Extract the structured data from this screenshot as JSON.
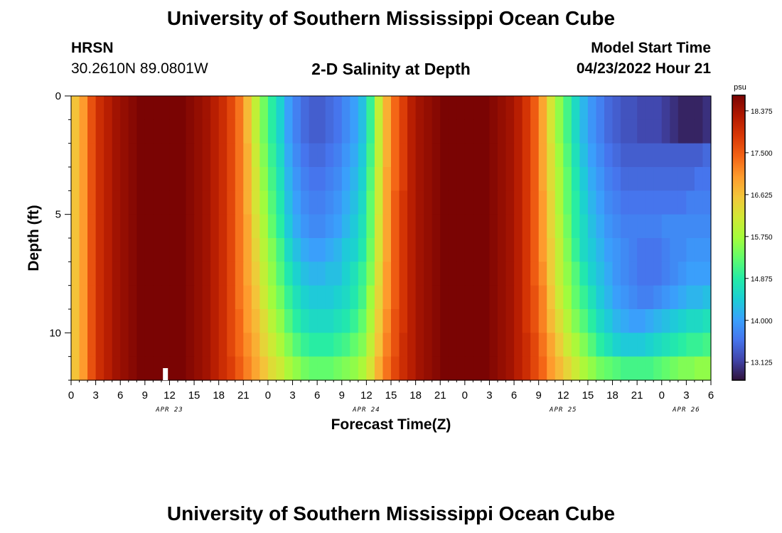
{
  "header": {
    "title": "University of Southern Mississippi Ocean Cube",
    "station": "HRSN",
    "coordinates": "30.2610N  89.0801W",
    "chart_title": "2-D Salinity at Depth",
    "model_start_label": "Model Start Time",
    "model_start_value": "04/23/2022 Hour 21"
  },
  "footer": {
    "title": "University of Southern Mississippi Ocean Cube"
  },
  "colors": {
    "background": "#ffffff",
    "current_time_marker": "#ffffff",
    "colormap": [
      "#30123b",
      "#4145ab",
      "#4675ed",
      "#39a2fc",
      "#1bcfd4",
      "#24eca6",
      "#61fc6c",
      "#a4fc3b",
      "#d1e834",
      "#f3c63a",
      "#fe9b2d",
      "#f36315",
      "#d93806",
      "#b11901",
      "#7a0403"
    ]
  },
  "chart_data": {
    "type": "heatmap",
    "title": "2-D Salinity at Depth",
    "xlabel": "Forecast Time(Z)",
    "ylabel": "Depth (ft)",
    "colorbar_label": "psu",
    "colorbar_ticks": [
      "18.375",
      "17.500",
      "16.625",
      "15.750",
      "14.875",
      "14.000",
      "13.125"
    ],
    "vmin": 12.75,
    "vmax": 18.7,
    "xlim": [
      0,
      78
    ],
    "ylim": [
      0,
      12
    ],
    "y_ticks": [
      "0",
      "5",
      "10"
    ],
    "y_tick_values": [
      0,
      5,
      10
    ],
    "x_tick_labels": [
      "0",
      "3",
      "6",
      "9",
      "12",
      "15",
      "18",
      "21",
      "0",
      "3",
      "6",
      "9",
      "12",
      "15",
      "18",
      "21",
      "0",
      "3",
      "6",
      "9",
      "12",
      "15",
      "18",
      "21",
      "0",
      "3",
      "6"
    ],
    "date_labels": [
      "APR 23",
      "APR 24",
      "APR 25",
      "APR 26"
    ],
    "date_label_hours": [
      12,
      36,
      60,
      75
    ],
    "current_time_hour": 11.5,
    "depth_levels_ft": [
      0,
      1,
      2,
      3,
      4,
      5,
      6,
      7,
      8,
      9,
      10,
      11,
      12
    ],
    "time_step_hours": 1,
    "time_hours": [
      0,
      1,
      2,
      3,
      4,
      5,
      6,
      7,
      8,
      9,
      10,
      11,
      12,
      13,
      14,
      15,
      16,
      17,
      18,
      19,
      20,
      21,
      22,
      23,
      24,
      25,
      26,
      27,
      28,
      29,
      30,
      31,
      32,
      33,
      34,
      35,
      36,
      37,
      38,
      39,
      40,
      41,
      42,
      43,
      44,
      45,
      46,
      47,
      48,
      49,
      50,
      51,
      52,
      53,
      54,
      55,
      56,
      57,
      58,
      59,
      60,
      61,
      62,
      63,
      64,
      65,
      66,
      67,
      68,
      69,
      70,
      71,
      72,
      73,
      74,
      75,
      76,
      77
    ],
    "salinity_psu_by_depth": [
      [
        16.6,
        17.0,
        17.6,
        18.0,
        18.2,
        18.4,
        18.5,
        18.6,
        18.7,
        18.7,
        18.7,
        18.7,
        18.7,
        18.7,
        18.6,
        18.5,
        18.4,
        18.2,
        18.0,
        17.7,
        17.3,
        16.7,
        16.0,
        15.4,
        14.9,
        14.5,
        14.0,
        13.7,
        13.5,
        13.4,
        13.4,
        13.5,
        13.6,
        13.8,
        14.0,
        14.3,
        15.0,
        16.0,
        16.8,
        17.4,
        17.8,
        18.2,
        18.4,
        18.5,
        18.6,
        18.7,
        18.7,
        18.7,
        18.7,
        18.7,
        18.7,
        18.6,
        18.5,
        18.4,
        18.2,
        17.9,
        17.5,
        16.9,
        16.2,
        15.6,
        15.1,
        14.6,
        14.2,
        13.9,
        13.7,
        13.5,
        13.4,
        13.3,
        13.3,
        13.2,
        13.2,
        13.2,
        13.1,
        13.0,
        12.9,
        12.9,
        12.9,
        13.0
      ],
      [
        16.6,
        17.0,
        17.6,
        18.0,
        18.2,
        18.4,
        18.5,
        18.6,
        18.7,
        18.7,
        18.7,
        18.7,
        18.7,
        18.7,
        18.6,
        18.5,
        18.4,
        18.2,
        18.0,
        17.7,
        17.3,
        16.7,
        16.0,
        15.4,
        14.9,
        14.5,
        14.0,
        13.7,
        13.5,
        13.4,
        13.4,
        13.5,
        13.6,
        13.8,
        14.0,
        14.3,
        15.0,
        16.0,
        16.8,
        17.4,
        17.8,
        18.2,
        18.4,
        18.5,
        18.6,
        18.7,
        18.7,
        18.7,
        18.7,
        18.7,
        18.7,
        18.6,
        18.5,
        18.4,
        18.2,
        17.9,
        17.5,
        16.9,
        16.2,
        15.6,
        15.1,
        14.6,
        14.2,
        13.9,
        13.7,
        13.5,
        13.4,
        13.3,
        13.3,
        13.2,
        13.2,
        13.2,
        13.1,
        13.0,
        12.9,
        12.9,
        12.9,
        13.0
      ],
      [
        16.6,
        17.0,
        17.6,
        18.0,
        18.2,
        18.4,
        18.5,
        18.6,
        18.7,
        18.7,
        18.7,
        18.7,
        18.7,
        18.7,
        18.6,
        18.5,
        18.4,
        18.2,
        18.0,
        17.7,
        17.3,
        16.8,
        16.1,
        15.5,
        15.0,
        14.6,
        14.1,
        13.8,
        13.6,
        13.5,
        13.5,
        13.6,
        13.7,
        13.9,
        14.1,
        14.4,
        15.1,
        16.0,
        16.8,
        17.4,
        17.8,
        18.2,
        18.4,
        18.5,
        18.6,
        18.7,
        18.7,
        18.7,
        18.7,
        18.7,
        18.7,
        18.6,
        18.5,
        18.4,
        18.2,
        17.9,
        17.5,
        16.9,
        16.3,
        15.7,
        15.2,
        14.7,
        14.3,
        14.0,
        13.8,
        13.6,
        13.5,
        13.4,
        13.4,
        13.4,
        13.4,
        13.4,
        13.4,
        13.4,
        13.4,
        13.4,
        13.4,
        13.5
      ],
      [
        16.6,
        17.0,
        17.6,
        18.0,
        18.2,
        18.4,
        18.5,
        18.6,
        18.7,
        18.7,
        18.7,
        18.7,
        18.7,
        18.7,
        18.6,
        18.5,
        18.4,
        18.2,
        18.0,
        17.7,
        17.3,
        16.8,
        16.2,
        15.6,
        15.1,
        14.7,
        14.2,
        13.9,
        13.7,
        13.6,
        13.6,
        13.7,
        13.8,
        14.0,
        14.2,
        14.5,
        15.2,
        16.1,
        16.9,
        17.4,
        17.8,
        18.2,
        18.4,
        18.5,
        18.6,
        18.7,
        18.7,
        18.7,
        18.7,
        18.7,
        18.7,
        18.6,
        18.5,
        18.4,
        18.2,
        17.9,
        17.5,
        16.9,
        16.3,
        15.8,
        15.3,
        14.8,
        14.4,
        14.1,
        13.9,
        13.7,
        13.6,
        13.5,
        13.5,
        13.5,
        13.5,
        13.5,
        13.5,
        13.5,
        13.5,
        13.5,
        13.6,
        13.6
      ],
      [
        16.6,
        17.0,
        17.6,
        18.0,
        18.2,
        18.4,
        18.5,
        18.6,
        18.7,
        18.7,
        18.7,
        18.7,
        18.7,
        18.7,
        18.6,
        18.5,
        18.4,
        18.2,
        18.0,
        17.7,
        17.3,
        16.8,
        16.2,
        15.7,
        15.2,
        14.8,
        14.3,
        14.0,
        13.8,
        13.7,
        13.7,
        13.8,
        13.9,
        14.1,
        14.3,
        14.6,
        15.3,
        16.1,
        16.9,
        17.5,
        17.9,
        18.2,
        18.4,
        18.5,
        18.6,
        18.7,
        18.7,
        18.7,
        18.7,
        18.7,
        18.7,
        18.6,
        18.5,
        18.4,
        18.2,
        17.9,
        17.5,
        17.0,
        16.4,
        15.8,
        15.3,
        14.9,
        14.5,
        14.2,
        14.0,
        13.8,
        13.7,
        13.6,
        13.6,
        13.6,
        13.6,
        13.6,
        13.6,
        13.6,
        13.6,
        13.7,
        13.7,
        13.7
      ],
      [
        16.6,
        17.0,
        17.6,
        18.0,
        18.2,
        18.4,
        18.5,
        18.6,
        18.7,
        18.7,
        18.7,
        18.7,
        18.7,
        18.7,
        18.6,
        18.5,
        18.4,
        18.2,
        18.0,
        17.7,
        17.3,
        16.9,
        16.3,
        15.8,
        15.3,
        14.9,
        14.4,
        14.1,
        13.9,
        13.8,
        13.8,
        13.9,
        14.0,
        14.2,
        14.4,
        14.7,
        15.3,
        16.2,
        16.9,
        17.5,
        17.9,
        18.2,
        18.4,
        18.5,
        18.6,
        18.7,
        18.7,
        18.7,
        18.7,
        18.7,
        18.7,
        18.6,
        18.5,
        18.4,
        18.2,
        17.9,
        17.5,
        17.0,
        16.4,
        15.9,
        15.4,
        14.9,
        14.6,
        14.3,
        14.1,
        13.9,
        13.8,
        13.7,
        13.7,
        13.7,
        13.7,
        13.7,
        13.8,
        13.8,
        13.8,
        13.8,
        13.8,
        13.8
      ],
      [
        16.6,
        17.0,
        17.6,
        18.0,
        18.2,
        18.4,
        18.5,
        18.6,
        18.7,
        18.7,
        18.7,
        18.7,
        18.7,
        18.7,
        18.6,
        18.5,
        18.4,
        18.2,
        18.0,
        17.7,
        17.3,
        16.9,
        16.4,
        15.9,
        15.5,
        15.1,
        14.6,
        14.3,
        14.1,
        14.0,
        14.0,
        14.1,
        14.2,
        14.4,
        14.5,
        14.8,
        15.4,
        16.2,
        16.9,
        17.5,
        17.9,
        18.2,
        18.4,
        18.5,
        18.6,
        18.7,
        18.7,
        18.7,
        18.7,
        18.7,
        18.7,
        18.6,
        18.5,
        18.4,
        18.2,
        17.9,
        17.5,
        17.0,
        16.5,
        16.0,
        15.5,
        15.0,
        14.6,
        14.4,
        14.2,
        14.0,
        13.9,
        13.8,
        13.7,
        13.6,
        13.6,
        13.6,
        13.7,
        13.8,
        13.8,
        13.9,
        13.9,
        13.9
      ],
      [
        16.6,
        17.0,
        17.6,
        18.0,
        18.2,
        18.4,
        18.5,
        18.6,
        18.7,
        18.7,
        18.7,
        18.7,
        18.7,
        18.7,
        18.6,
        18.5,
        18.4,
        18.2,
        18.0,
        17.7,
        17.3,
        16.9,
        16.5,
        16.0,
        15.6,
        15.2,
        14.8,
        14.5,
        14.3,
        14.2,
        14.2,
        14.3,
        14.3,
        14.5,
        14.7,
        15.0,
        15.5,
        16.3,
        17.0,
        17.5,
        17.9,
        18.2,
        18.4,
        18.5,
        18.6,
        18.7,
        18.7,
        18.7,
        18.7,
        18.7,
        18.7,
        18.6,
        18.5,
        18.4,
        18.2,
        17.9,
        17.5,
        17.1,
        16.5,
        16.0,
        15.6,
        15.2,
        14.8,
        14.5,
        14.3,
        14.1,
        13.9,
        13.8,
        13.7,
        13.6,
        13.6,
        13.6,
        13.7,
        13.8,
        13.9,
        14.0,
        14.0,
        14.0
      ],
      [
        16.6,
        17.0,
        17.6,
        18.0,
        18.2,
        18.4,
        18.5,
        18.6,
        18.7,
        18.7,
        18.7,
        18.7,
        18.7,
        18.7,
        18.6,
        18.5,
        18.4,
        18.2,
        18.0,
        17.7,
        17.3,
        17.0,
        16.6,
        16.1,
        15.7,
        15.4,
        15.0,
        14.7,
        14.5,
        14.4,
        14.4,
        14.4,
        14.5,
        14.6,
        14.8,
        15.1,
        15.7,
        16.4,
        17.0,
        17.5,
        17.9,
        18.2,
        18.4,
        18.5,
        18.6,
        18.7,
        18.7,
        18.7,
        18.7,
        18.7,
        18.7,
        18.6,
        18.5,
        18.4,
        18.2,
        17.9,
        17.6,
        17.2,
        16.6,
        16.1,
        15.7,
        15.3,
        15.0,
        14.7,
        14.4,
        14.2,
        14.0,
        13.9,
        13.8,
        13.7,
        13.7,
        13.8,
        13.9,
        14.0,
        14.1,
        14.2,
        14.2,
        14.3
      ],
      [
        16.6,
        17.0,
        17.6,
        18.0,
        18.2,
        18.4,
        18.5,
        18.6,
        18.7,
        18.7,
        18.7,
        18.7,
        18.7,
        18.7,
        18.6,
        18.5,
        18.4,
        18.2,
        18.0,
        17.7,
        17.4,
        17.0,
        16.7,
        16.3,
        15.9,
        15.6,
        15.2,
        14.9,
        14.7,
        14.6,
        14.6,
        14.6,
        14.7,
        14.8,
        15.0,
        15.3,
        15.8,
        16.5,
        17.1,
        17.6,
        17.9,
        18.2,
        18.4,
        18.5,
        18.6,
        18.7,
        18.7,
        18.7,
        18.7,
        18.7,
        18.7,
        18.6,
        18.5,
        18.4,
        18.2,
        17.9,
        17.6,
        17.2,
        16.7,
        16.3,
        15.9,
        15.5,
        15.2,
        14.9,
        14.6,
        14.4,
        14.2,
        14.1,
        14.0,
        14.0,
        14.1,
        14.2,
        14.3,
        14.4,
        14.5,
        14.6,
        14.6,
        14.7
      ],
      [
        16.6,
        17.0,
        17.6,
        18.0,
        18.2,
        18.4,
        18.5,
        18.6,
        18.7,
        18.7,
        18.7,
        18.7,
        18.7,
        18.7,
        18.6,
        18.5,
        18.4,
        18.2,
        18.0,
        17.7,
        17.4,
        17.1,
        16.8,
        16.4,
        16.1,
        15.8,
        15.5,
        15.2,
        15.0,
        14.9,
        14.9,
        14.9,
        15.0,
        15.1,
        15.3,
        15.5,
        16.0,
        16.6,
        17.2,
        17.6,
        18.0,
        18.2,
        18.4,
        18.5,
        18.6,
        18.7,
        18.7,
        18.7,
        18.7,
        18.7,
        18.7,
        18.6,
        18.5,
        18.4,
        18.2,
        18.0,
        17.7,
        17.3,
        16.9,
        16.5,
        16.1,
        15.8,
        15.5,
        15.2,
        14.9,
        14.7,
        14.5,
        14.4,
        14.4,
        14.4,
        14.5,
        14.6,
        14.7,
        14.8,
        14.9,
        15.0,
        15.0,
        15.1
      ],
      [
        16.6,
        17.0,
        17.6,
        18.0,
        18.2,
        18.4,
        18.5,
        18.6,
        18.7,
        18.7,
        18.7,
        18.7,
        18.7,
        18.7,
        18.6,
        18.5,
        18.4,
        18.2,
        18.0,
        17.8,
        17.5,
        17.2,
        16.9,
        16.6,
        16.3,
        16.1,
        15.8,
        15.6,
        15.4,
        15.3,
        15.3,
        15.3,
        15.4,
        15.5,
        15.6,
        15.8,
        16.2,
        16.8,
        17.3,
        17.7,
        18.0,
        18.2,
        18.4,
        18.5,
        18.6,
        18.7,
        18.7,
        18.7,
        18.7,
        18.7,
        18.7,
        18.6,
        18.5,
        18.4,
        18.2,
        18.0,
        17.7,
        17.4,
        17.0,
        16.7,
        16.4,
        16.1,
        15.8,
        15.6,
        15.4,
        15.3,
        15.2,
        15.1,
        15.1,
        15.1,
        15.1,
        15.2,
        15.3,
        15.4,
        15.5,
        15.5,
        15.6,
        15.6
      ],
      [
        16.6,
        17.0,
        17.6,
        18.0,
        18.2,
        18.4,
        18.5,
        18.6,
        18.7,
        18.7,
        18.7,
        18.7,
        18.7,
        18.7,
        18.6,
        18.5,
        18.4,
        18.2,
        18.0,
        17.8,
        17.6,
        17.3,
        17.0,
        16.8,
        16.5,
        16.3,
        16.1,
        15.9,
        15.8,
        15.7,
        15.7,
        15.7,
        15.8,
        15.9,
        16.0,
        16.1,
        16.5,
        17.0,
        17.4,
        17.8,
        18.0,
        18.2,
        18.4,
        18.5,
        18.6,
        18.7,
        18.7,
        18.7,
        18.7,
        18.7,
        18.7,
        18.6,
        18.5,
        18.4,
        18.3,
        18.1,
        17.8,
        17.5,
        17.2,
        16.9,
        16.6,
        16.4,
        16.2,
        16.0,
        15.9,
        15.8,
        15.7,
        15.7,
        15.7,
        15.7,
        15.7,
        15.8,
        15.8,
        15.9,
        15.9,
        16.0,
        16.0,
        16.0
      ]
    ]
  }
}
